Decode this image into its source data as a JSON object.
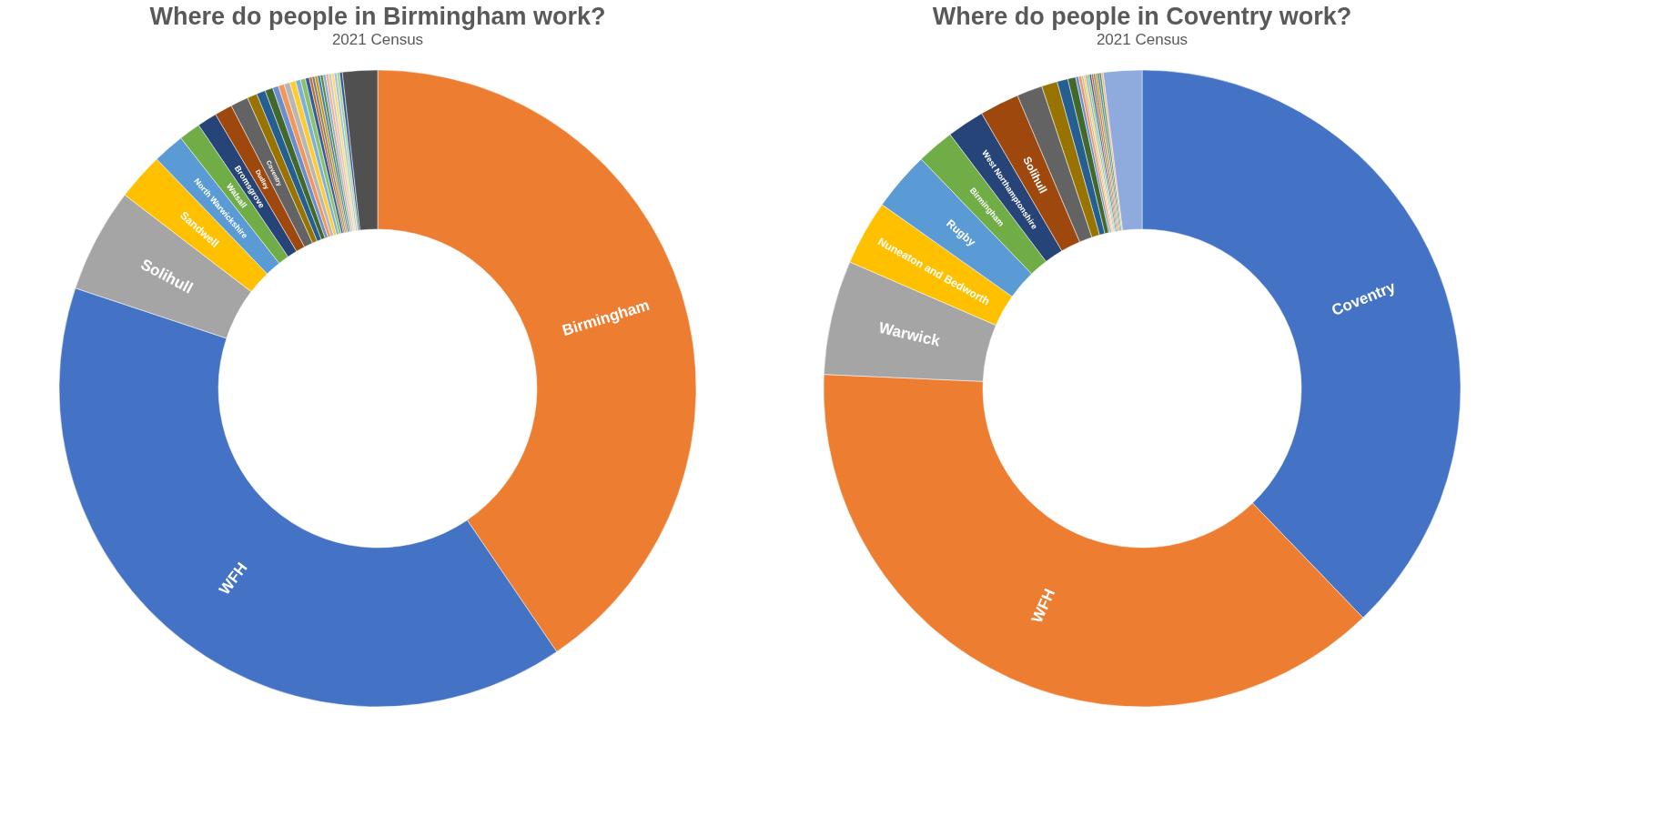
{
  "chart_data": [
    {
      "type": "donut",
      "title": "Where do people in Birmingham work?",
      "subtitle": "2021 Census",
      "categories": [
        "Birmingham",
        "WFH",
        "Solihull",
        "Sandwell",
        "North Warwickshire",
        "Walsall",
        "Bromsgrove",
        "Dudley",
        "Coventry",
        null,
        null,
        null,
        null,
        null,
        null,
        null,
        null,
        null,
        null,
        null,
        null,
        null,
        null,
        null,
        null,
        null,
        null,
        null,
        null,
        null,
        null,
        null
      ],
      "values": [
        40.5,
        39.6,
        5.3,
        2.4,
        1.6,
        1.1,
        1.0,
        0.9,
        0.9,
        0.5,
        0.45,
        0.4,
        0.3,
        0.3,
        0.3,
        0.3,
        0.25,
        0.25,
        0.2,
        0.14,
        0.14,
        0.14,
        0.14,
        0.14,
        0.14,
        0.14,
        0.14,
        0.14,
        0.14,
        0.14,
        0.14,
        1.77
      ],
      "colors": [
        "#ed7d31",
        "#4472c4",
        "#a5a5a5",
        "#ffc000",
        "#5b9bd5",
        "#70ad47",
        "#264478",
        "#9e480e",
        "#636363",
        "#997300",
        "#255e91",
        "#43682b",
        "#698ed0",
        "#f1975a",
        "#b7b7b7",
        "#ffcd33",
        "#7cafdd",
        "#8cc168",
        "#335aa1",
        "#be6a28",
        "#7f7f7f",
        "#cc9a00",
        "#3c7dc4",
        "#5a8a39",
        "#8faadc",
        "#f4b183",
        "#c9c9c9",
        "#ffd966",
        "#9dc3e6",
        "#a9d18e",
        "#2f5597",
        "#505050"
      ]
    },
    {
      "type": "donut",
      "title": "Where do people in Coventry work?",
      "subtitle": "2021 Census",
      "categories": [
        "Coventry",
        "WFH",
        "Warwick",
        "Nuneaton and Bedworth",
        "Rugby",
        "Birmingham",
        "West Northamptonshire",
        "Solihull",
        null,
        null,
        null,
        null,
        null,
        null,
        null,
        null,
        null,
        null,
        null,
        null,
        null,
        null,
        null,
        null,
        null,
        null
      ],
      "values": [
        37.8,
        37.9,
        5.8,
        3.3,
        3.0,
        1.9,
        1.9,
        2.0,
        1.3,
        0.8,
        0.55,
        0.4,
        0.15,
        0.15,
        0.1,
        0.1,
        0.1,
        0.1,
        0.1,
        0.1,
        0.1,
        0.1,
        0.1,
        0.1,
        0.1,
        1.95
      ],
      "colors": [
        "#4472c4",
        "#ed7d31",
        "#a5a5a5",
        "#ffc000",
        "#5b9bd5",
        "#70ad47",
        "#264478",
        "#9e480e",
        "#636363",
        "#997300",
        "#255e91",
        "#43682b",
        "#698ed0",
        "#f1975a",
        "#b7b7b7",
        "#ffcd33",
        "#7cafdd",
        "#8cc168",
        "#335aa1",
        "#be6a28",
        "#7f7f7f",
        "#cc9a00",
        "#3c7dc4",
        "#5a8a39",
        "#f4b183",
        "#8faadc"
      ]
    }
  ]
}
